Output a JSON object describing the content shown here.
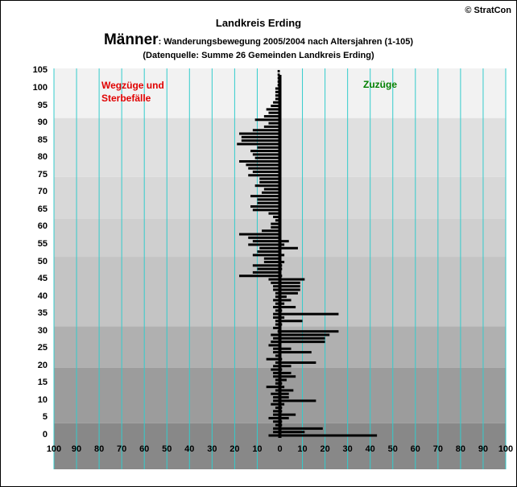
{
  "header": {
    "region": "Landkreis Erding",
    "copyright": "© StratCon",
    "title_big": "Männer",
    "title_small": ": Wanderungsbewegung 2005/2004 nach Altersjahren (1-105)",
    "source": "(Datenquelle: Summe 26 Gemeinden Landkreis Erding)"
  },
  "annotations": {
    "left_line1": "Wegzüge und",
    "left_line2": "Sterbefälle",
    "right": "Zuzüge"
  },
  "colors": {
    "bars": "#000000",
    "gridlines": "#33cccc",
    "band_light": "#dcdcdc",
    "band_dark": "#c8c8c8"
  },
  "chart_data": {
    "type": "bar",
    "orientation": "horizontal",
    "title": "Männer: Wanderungsbewegung 2005/2004 nach Altersjahren (1-105)",
    "xlim": [
      -100,
      100
    ],
    "ylim": [
      0,
      105
    ],
    "x_ticks": [
      -100,
      -90,
      -80,
      -70,
      -60,
      -50,
      -40,
      -30,
      -20,
      -10,
      0,
      10,
      20,
      30,
      40,
      50,
      60,
      70,
      80,
      90,
      100
    ],
    "x_tick_labels": [
      "100",
      "90",
      "80",
      "70",
      "60",
      "50",
      "40",
      "30",
      "20",
      "10",
      "0",
      "10",
      "20",
      "30",
      "40",
      "50",
      "60",
      "70",
      "80",
      "90",
      "100"
    ],
    "y_ticks": [
      0,
      5,
      10,
      15,
      20,
      25,
      30,
      35,
      40,
      45,
      50,
      55,
      60,
      65,
      70,
      75,
      80,
      85,
      90,
      95,
      100,
      105
    ],
    "grid": "vertical",
    "background_bands_age": [
      [
        0,
        3,
        "#888888"
      ],
      [
        3,
        19,
        "#9c9c9c"
      ],
      [
        19,
        31,
        "#b0b0b0"
      ],
      [
        31,
        51,
        "#c4c4c4"
      ],
      [
        51,
        62,
        "#cfcfcf"
      ],
      [
        62,
        74,
        "#d8d8d8"
      ],
      [
        74,
        91,
        "#e0e0e0"
      ],
      [
        91,
        106,
        "#f2f2f2"
      ]
    ],
    "ages": [
      0,
      1,
      2,
      3,
      4,
      5,
      6,
      7,
      8,
      9,
      10,
      11,
      12,
      13,
      14,
      15,
      16,
      17,
      18,
      19,
      20,
      21,
      22,
      23,
      24,
      25,
      26,
      27,
      28,
      29,
      30,
      31,
      32,
      33,
      34,
      35,
      36,
      37,
      38,
      39,
      40,
      41,
      42,
      43,
      44,
      45,
      46,
      47,
      48,
      49,
      50,
      51,
      52,
      53,
      54,
      55,
      56,
      57,
      58,
      59,
      60,
      61,
      62,
      63,
      64,
      65,
      66,
      67,
      68,
      69,
      70,
      71,
      72,
      73,
      74,
      75,
      76,
      77,
      78,
      79,
      80,
      81,
      82,
      83,
      84,
      85,
      86,
      87,
      88,
      89,
      90,
      91,
      92,
      93,
      94,
      95,
      96,
      97,
      98,
      99,
      100,
      101,
      102,
      103,
      104,
      105
    ],
    "series": [
      {
        "name": "Zuzüge",
        "values": [
          43,
          11,
          19,
          1,
          1,
          4,
          7,
          1,
          1,
          2,
          16,
          4,
          4,
          6,
          2,
          1,
          3,
          7,
          5,
          1,
          5,
          16,
          1,
          0,
          14,
          5,
          0,
          20,
          20,
          22,
          26,
          0,
          1,
          10,
          2,
          26,
          1,
          7,
          2,
          5,
          3,
          8,
          9,
          9,
          9,
          11,
          1,
          0,
          1,
          1,
          2,
          0,
          2,
          0,
          8,
          2,
          4,
          0,
          0,
          0,
          0,
          0,
          0,
          0,
          0,
          0,
          0,
          0,
          0,
          0,
          0,
          0,
          0,
          0,
          0,
          0,
          0,
          0,
          0,
          0,
          0,
          0,
          0,
          0,
          0,
          0,
          0,
          0,
          0,
          0,
          0,
          0,
          0,
          0,
          0,
          0,
          0,
          0,
          0,
          0,
          0,
          0,
          0,
          0,
          0,
          0
        ]
      },
      {
        "name": "Wegzüge und Sterbefälle",
        "values": [
          -5,
          -3,
          -3,
          -2,
          -3,
          -5,
          -3,
          -3,
          -2,
          -4,
          -3,
          -3,
          -4,
          -2,
          -6,
          -2,
          -2,
          -3,
          -3,
          -4,
          -3,
          -2,
          -6,
          -2,
          -3,
          -3,
          -5,
          -4,
          -3,
          -4,
          -1,
          -3,
          -2,
          -2,
          -3,
          -3,
          -2,
          -3,
          -2,
          -3,
          -2,
          -2,
          -3,
          -3,
          -4,
          -5,
          -18,
          -12,
          -10,
          -12,
          -7,
          -7,
          -12,
          -10,
          -9,
          -14,
          -12,
          -14,
          -18,
          -8,
          -4,
          -4,
          -2,
          -3,
          -5,
          -12,
          -13,
          -10,
          -10,
          -13,
          -8,
          -7,
          -11,
          -9,
          -9,
          -14,
          -12,
          -14,
          -15,
          -18,
          -11,
          -12,
          -13,
          -10,
          -19,
          -17,
          -17,
          -18,
          -12,
          -7,
          -5,
          -11,
          -7,
          -5,
          -6,
          -4,
          -3,
          -2,
          -2,
          -2,
          -2,
          -1,
          -1,
          -1,
          -1,
          -1
        ]
      }
    ]
  }
}
